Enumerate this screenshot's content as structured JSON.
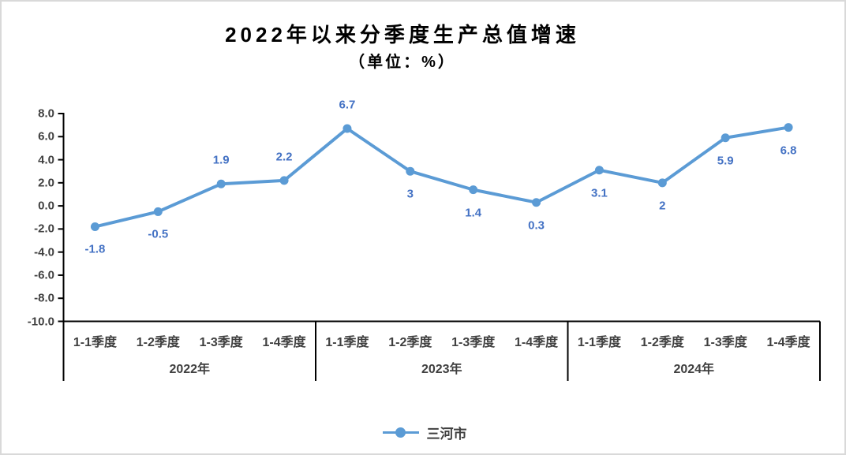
{
  "chart_data": {
    "type": "line",
    "title": "2022年以来分季度生产总值增速",
    "subtitle": "（单位：%）",
    "unit": "%",
    "series": [
      {
        "name": "三河市",
        "values": [
          -1.8,
          -0.5,
          1.9,
          2.2,
          6.7,
          3,
          1.4,
          0.3,
          3.1,
          2,
          5.9,
          6.8
        ],
        "point_labels": [
          "-1.8",
          "-0.5",
          "1.9",
          "2.2",
          "6.7",
          "3",
          "1.4",
          "0.3",
          "3.1",
          "2",
          "5.9",
          "6.8"
        ],
        "label_positions": [
          "below",
          "below",
          "above",
          "above",
          "above",
          "below",
          "below",
          "below",
          "below",
          "below",
          "below",
          "below"
        ]
      }
    ],
    "categories": [
      "1-1季度",
      "1-2季度",
      "1-3季度",
      "1-4季度",
      "1-1季度",
      "1-2季度",
      "1-3季度",
      "1-4季度",
      "1-1季度",
      "1-2季度",
      "1-3季度",
      "1-4季度"
    ],
    "year_groups": [
      {
        "label": "2022年",
        "span": 4
      },
      {
        "label": "2023年",
        "span": 4
      },
      {
        "label": "2024年",
        "span": 4
      }
    ],
    "ylim": [
      -10,
      8
    ],
    "ytick_step": 2,
    "ytick_labels": [
      "8.0",
      "6.0",
      "4.0",
      "2.0",
      "0.0",
      "-2.0",
      "-4.0",
      "-6.0",
      "-8.0",
      "-10.0"
    ],
    "grid": false,
    "legend_position": "bottom",
    "colors": {
      "line": "#5B9BD5",
      "marker": "#5B9BD5",
      "data_label": "#4472C4",
      "axis_text": "#404040",
      "axis_line": "#000000",
      "border": "#D9D9D9"
    }
  }
}
